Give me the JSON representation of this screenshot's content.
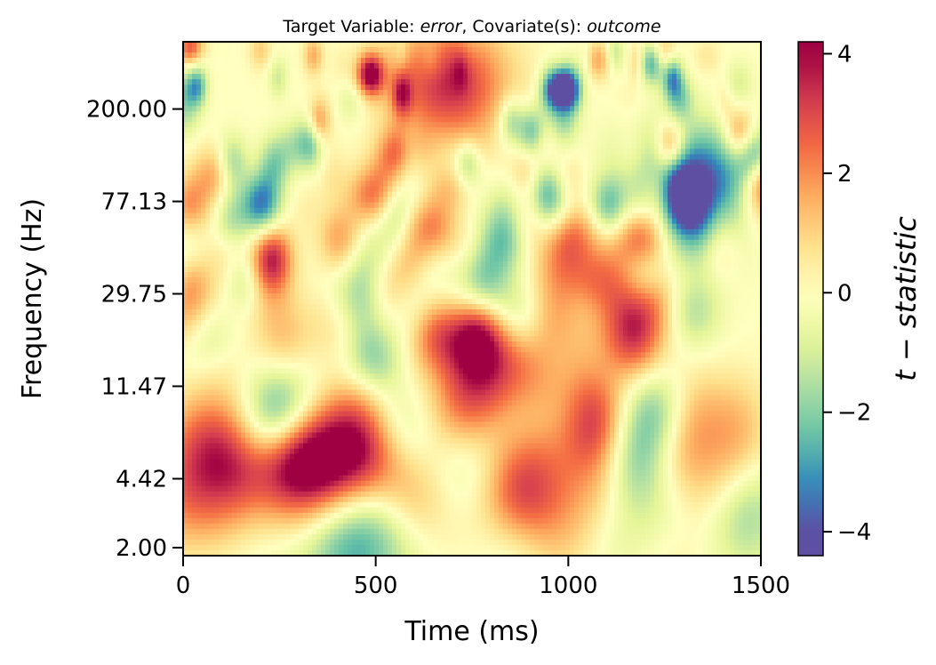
{
  "chart_data": {
    "type": "heatmap",
    "title": {
      "prefix": "Target Variable: ",
      "target": "error",
      "middle": ", Covariate(s): ",
      "covariate": "outcome"
    },
    "xlabel": "Time (ms)",
    "ylabel": "Frequency (Hz)",
    "xlim": [
      0,
      1500
    ],
    "x_ticks": [
      0,
      500,
      1000,
      1500
    ],
    "x_tick_labels": [
      "0",
      "500",
      "1000",
      "1500"
    ],
    "y_scale": "log",
    "ylim": [
      2.0,
      400.0
    ],
    "y_ticks": [
      2.0,
      4.42,
      11.47,
      29.75,
      77.13,
      200.0
    ],
    "y_tick_labels": [
      "2.00",
      "4.42",
      "11.47",
      "29.75",
      "77.13",
      "200.00"
    ],
    "colorbar": {
      "label": "t − statistic",
      "range": [
        -4.4,
        4.2
      ],
      "ticks": [
        -4,
        -2,
        0,
        2,
        4
      ],
      "tick_labels": [
        "−4",
        "−2",
        "0",
        "2",
        "4"
      ],
      "colormap": "Spectral_r",
      "colors": [
        "#5e4fa2",
        "#3288bd",
        "#66c2a5",
        "#abdda4",
        "#e6f598",
        "#ffffbf",
        "#fee08b",
        "#fdae61",
        "#f46d43",
        "#d53e4f",
        "#9e0142"
      ]
    },
    "features": [
      {
        "t": 330,
        "f": 5.0,
        "value": 4.0
      },
      {
        "t": 30,
        "f": 4.0,
        "value": 2.5
      },
      {
        "t": 560,
        "f": 23.0,
        "value": -2.5
      },
      {
        "t": 780,
        "f": 15.0,
        "value": 3.0
      },
      {
        "t": 1330,
        "f": 90.0,
        "value": -4.3
      },
      {
        "t": 690,
        "f": 260.0,
        "value": 3.5
      },
      {
        "t": 900,
        "f": 4.4,
        "value": 2.0
      },
      {
        "t": 1080,
        "f": 27.0,
        "value": 3.0
      },
      {
        "t": 430,
        "f": 2.0,
        "value": -1.5
      }
    ]
  }
}
